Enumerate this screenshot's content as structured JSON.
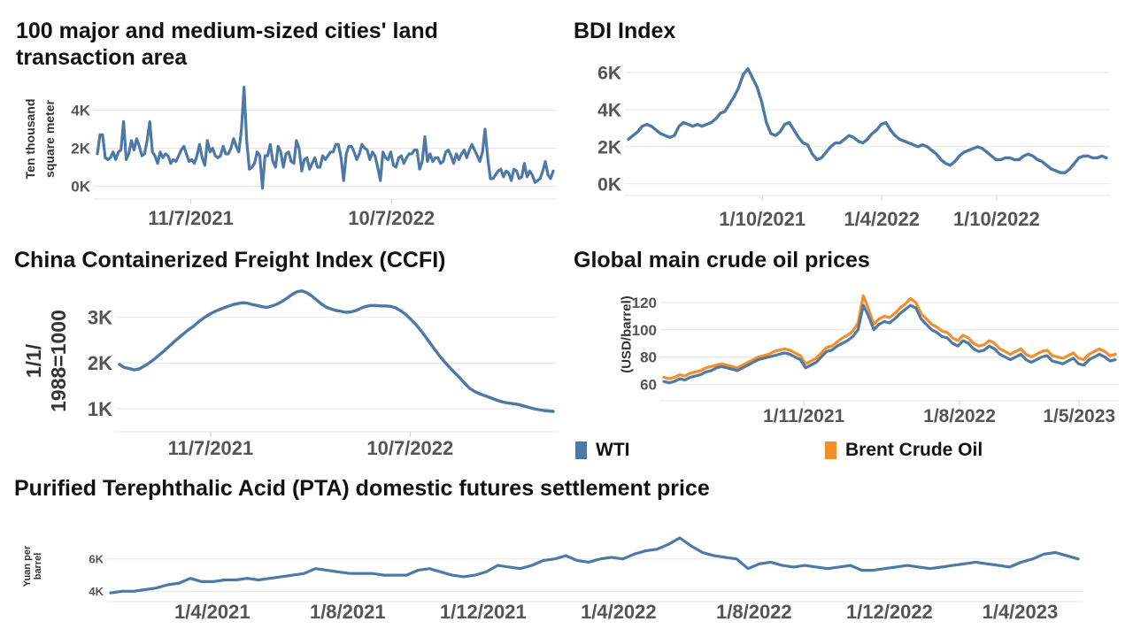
{
  "colors": {
    "blue": "#4e79a7",
    "orange": "#f28e2b",
    "tick": "#555555",
    "grid": "#e6e6e6"
  },
  "chart_data": [
    {
      "id": "land",
      "type": "line",
      "title": "100 major and medium-sized cities' land transaction area",
      "ylabel": "Ten thousand square meter",
      "ylim": [
        -300,
        5600
      ],
      "yticks": [
        {
          "v": 0,
          "label": "0K"
        },
        {
          "v": 2000,
          "label": "2K"
        },
        {
          "v": 4000,
          "label": "4K"
        }
      ],
      "xlim": [
        0,
        100
      ],
      "xticks": [
        {
          "v": 20.5,
          "label": "11/7/2021"
        },
        {
          "v": 64.5,
          "label": "10/7/2022"
        }
      ],
      "series": [
        {
          "values": [
            1700,
            2700,
            2700,
            1500,
            1400,
            1500,
            1800,
            1400,
            1800,
            1900,
            3400,
            1400,
            1700,
            2400,
            1900,
            2500,
            2100,
            1600,
            1700,
            2400,
            3400,
            1800,
            1600,
            1200,
            1800,
            1500,
            1700,
            1600,
            1200,
            1400,
            1300,
            1600,
            1900,
            2100,
            1700,
            1300,
            1400,
            1200,
            1600,
            2200,
            1500,
            1100,
            2400,
            1800,
            2000,
            1600,
            1500,
            1600,
            2100,
            1700,
            1700,
            2000,
            2500,
            2100,
            1800,
            3000,
            5200,
            2400,
            900,
            1000,
            1200,
            1800,
            1600,
            -100,
            1600,
            1600,
            2200,
            1300,
            1000,
            2100,
            1800,
            1000,
            1700,
            1800,
            1300,
            1200,
            2400,
            2000,
            800,
            1400,
            1500,
            900,
            1200,
            1500,
            1000,
            1000,
            1600,
            1400,
            1600,
            1800,
            1800,
            2200,
            2200,
            1500,
            300,
            1700,
            2100,
            2100,
            1800,
            1400,
            1700,
            2200,
            2000,
            1900,
            1400,
            1800,
            1600,
            1000,
            300,
            1800,
            1500,
            1400,
            1800,
            1100,
            1000,
            1500,
            1600,
            1200,
            1500,
            1700,
            1700,
            1900,
            1900,
            900,
            1300,
            2600,
            1300,
            1700,
            1300,
            1500,
            1500,
            1200,
            1300,
            1800,
            1900,
            1600,
            1200,
            1700,
            1400,
            1700,
            1900,
            1500,
            1900,
            2200,
            1900,
            1600,
            1300,
            1800,
            3000,
            1500,
            400,
            400,
            600,
            800,
            900,
            500,
            800,
            700,
            300,
            900,
            800,
            400,
            500,
            1200,
            500,
            800,
            600,
            200,
            300,
            400,
            800,
            1300,
            600,
            400,
            800
          ]
        }
      ]
    },
    {
      "id": "bdi",
      "type": "line",
      "title": "BDI Index",
      "ylim": [
        -250,
        6900
      ],
      "yticks": [
        {
          "v": 0,
          "label": "0K"
        },
        {
          "v": 2000,
          "label": "2K"
        },
        {
          "v": 4000,
          "label": "4K"
        },
        {
          "v": 6000,
          "label": "6K"
        }
      ],
      "xlim": [
        0,
        100
      ],
      "xticks": [
        {
          "v": 28,
          "label": "1/10/2021"
        },
        {
          "v": 53,
          "label": "1/4/2022"
        },
        {
          "v": 77,
          "label": "1/10/2022"
        }
      ],
      "series": [
        {
          "values": [
            2400,
            2600,
            2800,
            3100,
            3200,
            3100,
            2900,
            2700,
            2600,
            2500,
            2600,
            3100,
            3300,
            3200,
            3100,
            3200,
            3100,
            3200,
            3300,
            3500,
            3800,
            3900,
            4300,
            4700,
            5200,
            5900,
            6200,
            5700,
            5200,
            4400,
            3300,
            2700,
            2600,
            2800,
            3200,
            3300,
            2900,
            2500,
            2200,
            2100,
            1600,
            1300,
            1400,
            1700,
            2000,
            2200,
            2200,
            2400,
            2600,
            2500,
            2300,
            2200,
            2400,
            2700,
            2900,
            3200,
            3300,
            2900,
            2600,
            2400,
            2300,
            2200,
            2100,
            2000,
            2100,
            2000,
            1800,
            1600,
            1300,
            1100,
            1000,
            1200,
            1500,
            1700,
            1800,
            1900,
            2000,
            1900,
            1700,
            1500,
            1300,
            1300,
            1400,
            1400,
            1300,
            1300,
            1500,
            1600,
            1500,
            1300,
            1200,
            1000,
            800,
            700,
            600,
            600,
            800,
            1100,
            1400,
            1500,
            1500,
            1400,
            1400,
            1500,
            1400
          ]
        }
      ]
    },
    {
      "id": "ccfi",
      "type": "line",
      "title": "China Containerized Freight Index (CCFI)",
      "ylabel": "1/1/ 1988=1000",
      "ylim": [
        650,
        3750
      ],
      "yticks": [
        {
          "v": 1000,
          "label": "1K"
        },
        {
          "v": 2000,
          "label": "2K"
        },
        {
          "v": 3000,
          "label": "3K"
        }
      ],
      "xlim": [
        0,
        100
      ],
      "xticks": [
        {
          "v": 21,
          "label": "11/7/2021"
        },
        {
          "v": 67,
          "label": "10/7/2022"
        }
      ],
      "series": [
        {
          "values": [
            1970,
            1900,
            1880,
            1850,
            1870,
            1930,
            2000,
            2080,
            2170,
            2260,
            2360,
            2460,
            2550,
            2640,
            2730,
            2800,
            2900,
            2980,
            3050,
            3110,
            3160,
            3200,
            3240,
            3280,
            3300,
            3320,
            3310,
            3280,
            3260,
            3230,
            3220,
            3250,
            3290,
            3350,
            3420,
            3500,
            3560,
            3580,
            3540,
            3470,
            3380,
            3290,
            3220,
            3180,
            3150,
            3130,
            3110,
            3120,
            3150,
            3200,
            3240,
            3260,
            3260,
            3250,
            3250,
            3240,
            3210,
            3150,
            3070,
            2970,
            2860,
            2730,
            2590,
            2440,
            2290,
            2150,
            2020,
            1900,
            1790,
            1680,
            1560,
            1450,
            1380,
            1330,
            1290,
            1250,
            1210,
            1170,
            1140,
            1120,
            1110,
            1090,
            1060,
            1030,
            1000,
            980,
            960,
            950,
            940
          ]
        }
      ]
    },
    {
      "id": "crude",
      "type": "line",
      "title": "Global main crude oil prices",
      "ylabel": "(USD/barrel)",
      "ylim": [
        53,
        133
      ],
      "yticks": [
        {
          "v": 60,
          "label": "60"
        },
        {
          "v": 80,
          "label": "80"
        },
        {
          "v": 100,
          "label": "100"
        },
        {
          "v": 120,
          "label": "120"
        }
      ],
      "xlim": [
        0,
        100
      ],
      "xticks": [
        {
          "v": 31,
          "label": "1/11/2021"
        },
        {
          "v": 65.5,
          "label": "1/8/2022"
        },
        {
          "v": 92,
          "label": "1/5/2023"
        }
      ],
      "series": [
        {
          "name": "WTI",
          "values": [
            62,
            61,
            62,
            64,
            63,
            65,
            66,
            67,
            69,
            70,
            72,
            73,
            72,
            71,
            70,
            72,
            74,
            76,
            78,
            79,
            80,
            81,
            82,
            83,
            82,
            80,
            78,
            72,
            74,
            76,
            80,
            84,
            85,
            88,
            90,
            92,
            95,
            100,
            118,
            110,
            100,
            104,
            106,
            105,
            108,
            112,
            115,
            118,
            116,
            108,
            104,
            100,
            98,
            95,
            94,
            90,
            88,
            92,
            90,
            86,
            84,
            85,
            88,
            86,
            82,
            80,
            78,
            80,
            82,
            78,
            76,
            78,
            80,
            81,
            77,
            76,
            75,
            77,
            79,
            75,
            74,
            78,
            80,
            82,
            80,
            77,
            78
          ],
          "color": "#4e79a7"
        },
        {
          "name": "Brent Crude Oil",
          "values": [
            65,
            64,
            65,
            67,
            66,
            68,
            69,
            70,
            72,
            73,
            74,
            75,
            74,
            73,
            72,
            74,
            76,
            78,
            80,
            81,
            82,
            84,
            85,
            86,
            85,
            83,
            81,
            75,
            77,
            79,
            83,
            87,
            88,
            91,
            94,
            96,
            99,
            105,
            125,
            115,
            104,
            108,
            110,
            109,
            112,
            116,
            119,
            123,
            120,
            112,
            108,
            104,
            102,
            99,
            98,
            94,
            92,
            96,
            94,
            90,
            88,
            89,
            92,
            90,
            86,
            84,
            82,
            84,
            86,
            82,
            80,
            82,
            84,
            85,
            81,
            80,
            79,
            81,
            83,
            79,
            78,
            82,
            84,
            86,
            84,
            81,
            82
          ],
          "color": "#f28e2b"
        }
      ]
    },
    {
      "id": "pta",
      "type": "line",
      "title": "Purified Terephthalic Acid (PTA) domestic futures settlement price",
      "ylabel": "Yuan per barrel",
      "ylim": [
        3800,
        7300
      ],
      "yticks": [
        {
          "v": 4000,
          "label": "4K"
        },
        {
          "v": 6000,
          "label": "6K"
        }
      ],
      "xlim": [
        0,
        100
      ],
      "xticks": [
        {
          "v": 10.5,
          "label": "1/4/2021"
        },
        {
          "v": 24.5,
          "label": "1/8/2021"
        },
        {
          "v": 38.5,
          "label": "1/12/2021"
        },
        {
          "v": 52.5,
          "label": "1/4/2022"
        },
        {
          "v": 66.5,
          "label": "1/8/2022"
        },
        {
          "v": 80.5,
          "label": "1/12/2022"
        },
        {
          "v": 94,
          "label": "1/4/2023"
        }
      ],
      "series": [
        {
          "values": [
            3900,
            4000,
            4000,
            4100,
            4200,
            4400,
            4500,
            4800,
            4600,
            4600,
            4700,
            4700,
            4800,
            4700,
            4800,
            4900,
            5000,
            5100,
            5400,
            5300,
            5200,
            5100,
            5100,
            5100,
            5000,
            5000,
            5000,
            5300,
            5400,
            5200,
            5000,
            4900,
            5000,
            5200,
            5600,
            5500,
            5400,
            5600,
            5900,
            6000,
            6200,
            5900,
            5800,
            6000,
            6100,
            6000,
            6300,
            6500,
            6600,
            6900,
            7300,
            6800,
            6400,
            6200,
            6100,
            6000,
            5400,
            5700,
            5800,
            5600,
            5500,
            5600,
            5500,
            5400,
            5500,
            5600,
            5300,
            5300,
            5400,
            5500,
            5600,
            5500,
            5400,
            5500,
            5600,
            5700,
            5800,
            5700,
            5600,
            5500,
            5800,
            6000,
            6300,
            6400,
            6200,
            6000
          ]
        }
      ]
    }
  ],
  "legend": {
    "wti_label": "WTI",
    "brent_label": "Brent Crude Oil"
  }
}
